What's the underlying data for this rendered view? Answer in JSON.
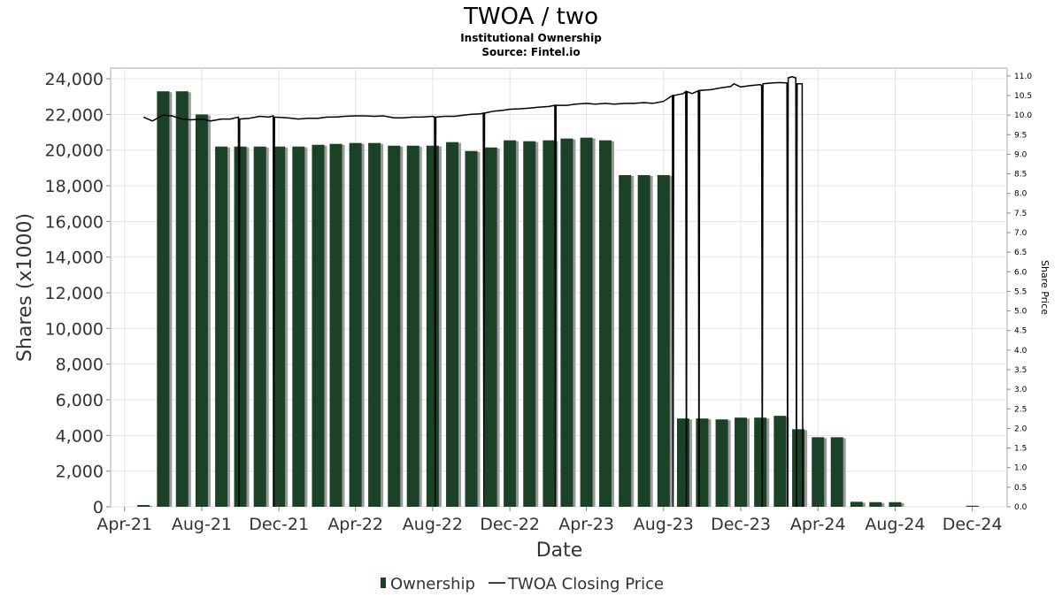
{
  "chart_data": {
    "type": "bar",
    "title": "TWOA / two",
    "subtitle": "Institutional Ownership",
    "source": "Source: Fintel.io",
    "xlabel": "Date",
    "ylabel": "Shares (x1000)",
    "y2label": "Share Price",
    "x_tick_labels": [
      "Apr-21",
      "Aug-21",
      "Dec-21",
      "Apr-22",
      "Aug-22",
      "Dec-22",
      "Apr-23",
      "Aug-23",
      "Dec-23",
      "Apr-24",
      "Aug-24",
      "Dec-24"
    ],
    "x_tick_dates": [
      "2021-04-01",
      "2021-08-01",
      "2021-12-01",
      "2022-04-01",
      "2022-08-01",
      "2022-12-01",
      "2023-04-01",
      "2023-08-01",
      "2023-12-01",
      "2024-04-01",
      "2024-08-01",
      "2024-12-01"
    ],
    "xlim": [
      "2021-03-10",
      "2025-01-25"
    ],
    "ylim": [
      0,
      24600
    ],
    "y_ticks": [
      0,
      2000,
      4000,
      6000,
      8000,
      10000,
      12000,
      14000,
      16000,
      18000,
      20000,
      22000,
      24000
    ],
    "y_tick_labels": [
      "0",
      "2,000",
      "4,000",
      "6,000",
      "8,000",
      "10,000",
      "12,000",
      "14,000",
      "16,000",
      "18,000",
      "20,000",
      "22,000",
      "24,000"
    ],
    "y2lim": [
      0,
      11.2
    ],
    "y2_ticks": [
      0,
      0.5,
      1.0,
      1.5,
      2.0,
      2.5,
      3.0,
      3.5,
      4.0,
      4.5,
      5.0,
      5.5,
      6.0,
      6.5,
      7.0,
      7.5,
      8.0,
      8.5,
      9.0,
      9.5,
      10.0,
      10.5,
      11.0
    ],
    "y2_tick_labels": [
      "0.0",
      "0.5",
      "1.0",
      "1.5",
      "2.0",
      "2.5",
      "3.0",
      "3.5",
      "4.0",
      "4.5",
      "5.0",
      "5.5",
      "6.0",
      "6.5",
      "7.0",
      "7.5",
      "8.0",
      "8.5",
      "9.0",
      "9.5",
      "10.0",
      "10.5",
      "11.0"
    ],
    "grid": true,
    "legend": "bottom-center",
    "series": [
      {
        "name": "Ownership",
        "type": "bar",
        "color": "#1b4227",
        "x": [
          "2021-05-01",
          "2021-06-01",
          "2021-07-01",
          "2021-08-01",
          "2021-09-01",
          "2021-10-01",
          "2021-11-01",
          "2021-12-01",
          "2022-01-01",
          "2022-02-01",
          "2022-03-01",
          "2022-04-01",
          "2022-05-01",
          "2022-06-01",
          "2022-07-01",
          "2022-08-01",
          "2022-09-01",
          "2022-10-01",
          "2022-11-01",
          "2022-12-01",
          "2023-01-01",
          "2023-02-01",
          "2023-03-01",
          "2023-04-01",
          "2023-05-01",
          "2023-06-01",
          "2023-07-01",
          "2023-08-01",
          "2023-09-01",
          "2023-10-01",
          "2023-11-01",
          "2023-12-01",
          "2024-01-01",
          "2024-02-01",
          "2024-03-01",
          "2024-04-01",
          "2024-05-01",
          "2024-06-01",
          "2024-07-01",
          "2024-08-01",
          "2024-12-01"
        ],
        "values": [
          100,
          23300,
          23300,
          22000,
          20200,
          20200,
          20200,
          20200,
          20200,
          20300,
          20350,
          20400,
          20400,
          20250,
          20250,
          20250,
          20450,
          19950,
          20150,
          20550,
          20500,
          20550,
          20650,
          20700,
          20550,
          18600,
          18600,
          18600,
          4950,
          4950,
          4900,
          5000,
          5000,
          5100,
          4350,
          3900,
          3900,
          280,
          260,
          260,
          60
        ]
      },
      {
        "name": "TWOA Closing Price",
        "type": "line",
        "color": "#000000",
        "x": [
          "2021-05-01",
          "2021-05-15",
          "2021-06-01",
          "2021-06-15",
          "2021-07-01",
          "2021-07-15",
          "2021-08-01",
          "2021-08-15",
          "2021-09-01",
          "2021-09-15",
          "2021-09-28",
          "2021-09-29",
          "2021-09-30",
          "2021-10-15",
          "2021-11-01",
          "2021-11-15",
          "2021-11-22",
          "2021-11-23",
          "2021-11-24",
          "2021-12-15",
          "2022-01-01",
          "2022-01-15",
          "2022-02-01",
          "2022-02-15",
          "2022-03-01",
          "2022-03-15",
          "2022-04-01",
          "2022-04-15",
          "2022-05-01",
          "2022-05-15",
          "2022-06-01",
          "2022-06-15",
          "2022-07-01",
          "2022-07-15",
          "2022-08-01",
          "2022-08-04",
          "2022-08-05",
          "2022-08-06",
          "2022-08-20",
          "2022-09-05",
          "2022-09-20",
          "2022-10-01",
          "2022-10-15",
          "2022-10-20",
          "2022-10-21",
          "2022-10-22",
          "2022-11-05",
          "2022-11-20",
          "2022-12-01",
          "2022-12-15",
          "2023-01-01",
          "2023-01-15",
          "2023-02-01",
          "2023-02-10",
          "2023-02-11",
          "2023-02-12",
          "2023-03-01",
          "2023-03-15",
          "2023-04-01",
          "2023-04-15",
          "2023-05-01",
          "2023-05-15",
          "2023-06-01",
          "2023-06-15",
          "2023-07-01",
          "2023-07-15",
          "2023-08-01",
          "2023-08-15",
          "2023-08-16",
          "2023-08-17",
          "2023-09-01",
          "2023-09-05",
          "2023-09-06",
          "2023-09-07",
          "2023-09-15",
          "2023-09-25",
          "2023-09-26",
          "2023-09-27",
          "2023-10-15",
          "2023-11-01",
          "2023-11-15",
          "2023-11-20",
          "2023-12-01",
          "2023-12-15",
          "2024-01-01",
          "2024-01-03",
          "2024-01-04",
          "2024-01-05",
          "2024-01-20",
          "2024-02-01",
          "2024-02-12",
          "2024-02-13",
          "2024-02-14",
          "2024-02-20",
          "2024-02-26",
          "2024-02-27",
          "2024-02-28",
          "2024-02-29",
          "2024-03-07",
          "2024-03-08"
        ],
        "values": [
          9.95,
          9.85,
          10.0,
          9.98,
          9.9,
          9.88,
          9.9,
          9.85,
          9.9,
          9.9,
          9.95,
          0.0,
          9.9,
          9.92,
          9.97,
          9.95,
          9.98,
          0.0,
          9.95,
          9.93,
          9.9,
          9.92,
          9.92,
          9.95,
          9.95,
          9.97,
          9.98,
          9.98,
          9.97,
          9.98,
          9.93,
          9.93,
          9.95,
          9.95,
          9.97,
          9.95,
          0.0,
          9.95,
          9.97,
          9.97,
          10.0,
          10.02,
          10.03,
          10.05,
          0.0,
          10.05,
          10.1,
          10.12,
          10.15,
          10.16,
          10.18,
          10.2,
          10.22,
          10.25,
          0.0,
          10.25,
          10.25,
          10.28,
          10.3,
          10.28,
          10.3,
          10.28,
          10.3,
          10.3,
          10.32,
          10.3,
          10.35,
          10.5,
          0.0,
          10.5,
          10.55,
          10.6,
          0.0,
          10.6,
          10.55,
          10.62,
          0.0,
          10.63,
          10.65,
          10.7,
          10.73,
          10.8,
          10.72,
          10.75,
          10.78,
          10.75,
          0.0,
          10.8,
          10.82,
          10.83,
          10.82,
          0.0,
          10.95,
          10.98,
          10.95,
          0.0,
          10.8,
          10.8,
          10.8,
          0.0
        ]
      }
    ]
  }
}
